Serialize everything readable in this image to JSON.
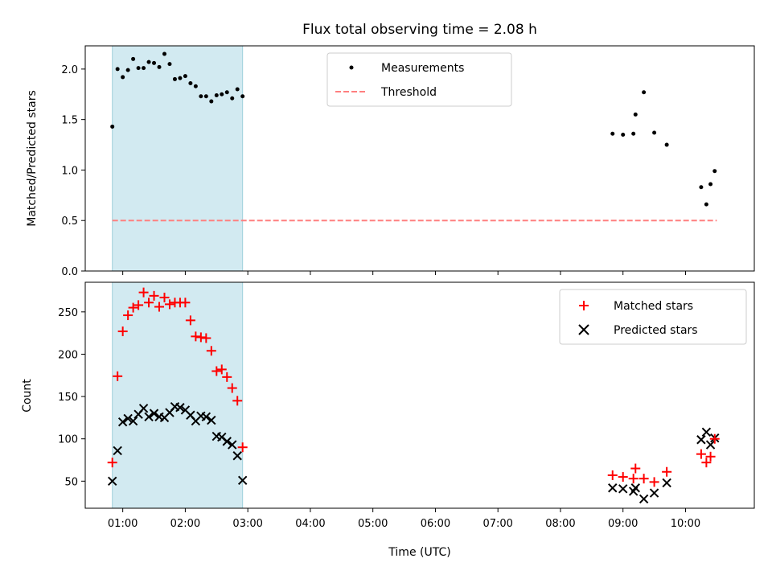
{
  "chart_data": [
    {
      "type": "scatter",
      "title": "Flux total observing time = 2.08 h",
      "xlabel": "",
      "ylabel": "Matched/Predicted stars",
      "xlim": [
        "00:24",
        "11:06"
      ],
      "ylim": [
        0,
        2.23
      ],
      "yticks": [
        0.0,
        0.5,
        1.0,
        1.5,
        2.0
      ],
      "ytick_labels": [
        "0.0",
        "0.5",
        "1.0",
        "1.5",
        "2.0"
      ],
      "grid": false,
      "legend_position": "top-center",
      "shaded_interval": [
        "00:50",
        "02:55"
      ],
      "colors": {
        "shade": "#add8e6",
        "measurements": "#000000",
        "threshold": "#ff7f7f"
      },
      "series": [
        {
          "name": "Measurements",
          "style": "dot",
          "x": [
            "00:50",
            "00:55",
            "01:00",
            "01:05",
            "01:10",
            "01:15",
            "01:20",
            "01:25",
            "01:30",
            "01:35",
            "01:40",
            "01:45",
            "01:50",
            "01:55",
            "02:00",
            "02:05",
            "02:10",
            "02:15",
            "02:20",
            "02:25",
            "02:30",
            "02:35",
            "02:40",
            "02:45",
            "02:50",
            "02:55",
            "08:50",
            "09:00",
            "09:10",
            "09:12",
            "09:20",
            "09:30",
            "09:42",
            "10:15",
            "10:20",
            "10:24",
            "10:28"
          ],
          "y": [
            1.43,
            2.0,
            1.92,
            1.99,
            2.1,
            2.01,
            2.01,
            2.07,
            2.06,
            2.02,
            2.15,
            2.05,
            1.9,
            1.91,
            1.93,
            1.86,
            1.83,
            1.73,
            1.73,
            1.68,
            1.74,
            1.75,
            1.77,
            1.71,
            1.8,
            1.73,
            1.36,
            1.35,
            1.36,
            1.55,
            1.77,
            1.37,
            1.25,
            0.83,
            0.66,
            0.86,
            0.99
          ]
        },
        {
          "name": "Threshold",
          "style": "dashed-line",
          "x": [
            "00:50",
            "10:30"
          ],
          "y": [
            0.5,
            0.5
          ]
        }
      ]
    },
    {
      "type": "scatter",
      "title": "",
      "xlabel": "Time (UTC)",
      "ylabel": "Count",
      "xlim": [
        "00:24",
        "11:06"
      ],
      "ylim": [
        18,
        285
      ],
      "yticks": [
        50,
        100,
        150,
        200,
        250
      ],
      "ytick_labels": [
        "50",
        "100",
        "150",
        "200",
        "250"
      ],
      "xticks": [
        "01:00",
        "02:00",
        "03:00",
        "04:00",
        "05:00",
        "06:00",
        "07:00",
        "08:00",
        "09:00",
        "10:00"
      ],
      "xtick_labels": [
        "01:00",
        "02:00",
        "03:00",
        "04:00",
        "05:00",
        "06:00",
        "07:00",
        "08:00",
        "09:00",
        "10:00"
      ],
      "grid": false,
      "legend_position": "top-right",
      "shaded_interval": [
        "00:50",
        "02:55"
      ],
      "colors": {
        "shade": "#add8e6",
        "matched": "#ff0000",
        "predicted": "#000000"
      },
      "series": [
        {
          "name": "Matched stars",
          "marker": "+",
          "x": [
            "00:50",
            "00:55",
            "01:00",
            "01:05",
            "01:10",
            "01:15",
            "01:20",
            "01:25",
            "01:30",
            "01:35",
            "01:40",
            "01:45",
            "01:50",
            "01:55",
            "02:00",
            "02:05",
            "02:10",
            "02:15",
            "02:20",
            "02:25",
            "02:30",
            "02:35",
            "02:40",
            "02:45",
            "02:50",
            "02:55",
            "08:50",
            "09:00",
            "09:10",
            "09:12",
            "09:20",
            "09:30",
            "09:42",
            "10:15",
            "10:20",
            "10:24",
            "10:28"
          ],
          "y": [
            72,
            174,
            227,
            246,
            255,
            258,
            273,
            261,
            269,
            256,
            267,
            259,
            261,
            261,
            261,
            240,
            221,
            220,
            219,
            204,
            180,
            182,
            173,
            160,
            145,
            90,
            57,
            55,
            53,
            65,
            53,
            49,
            61,
            82,
            72,
            79,
            100
          ]
        },
        {
          "name": "Predicted stars",
          "marker": "x",
          "x": [
            "00:50",
            "00:55",
            "01:00",
            "01:05",
            "01:10",
            "01:15",
            "01:20",
            "01:25",
            "01:30",
            "01:35",
            "01:40",
            "01:45",
            "01:50",
            "01:55",
            "02:00",
            "02:05",
            "02:10",
            "02:15",
            "02:20",
            "02:25",
            "02:30",
            "02:35",
            "02:40",
            "02:45",
            "02:50",
            "02:55",
            "08:50",
            "09:00",
            "09:10",
            "09:12",
            "09:20",
            "09:30",
            "09:42",
            "10:15",
            "10:20",
            "10:24",
            "10:28"
          ],
          "y": [
            50,
            86,
            120,
            124,
            121,
            129,
            136,
            126,
            130,
            126,
            125,
            131,
            138,
            137,
            134,
            128,
            121,
            127,
            126,
            122,
            103,
            102,
            97,
            93,
            80,
            51,
            42,
            41,
            38,
            42,
            29,
            36,
            48,
            99,
            108,
            93,
            101
          ]
        }
      ]
    }
  ]
}
